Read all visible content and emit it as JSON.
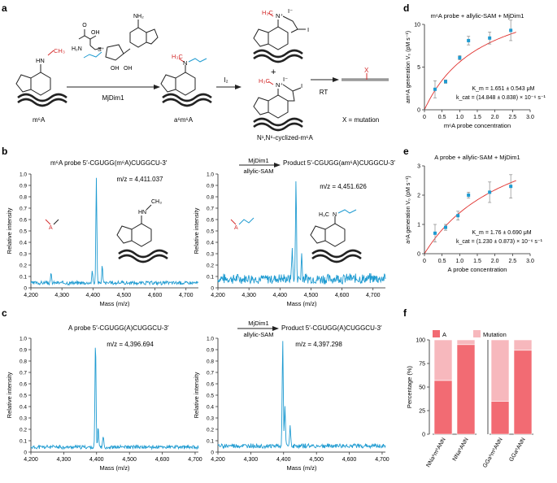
{
  "panels": {
    "a": "a",
    "b": "b",
    "c": "c",
    "d": "d",
    "e": "e",
    "f": "f"
  },
  "scheme": {
    "m6a_label": "m⁶A",
    "a6m6a_label": "a⁶m⁶A",
    "cyclized_label": "N¹,N⁶-cyclized-m⁶A",
    "enzyme": "MjDim1",
    "reagent": "I₂",
    "rt": "RT",
    "mutation_mark": "X",
    "mutation_legend": "X = mutation",
    "iodide": "I⁻",
    "iodine": "I",
    "plus": "+",
    "methyl": "CH₃",
    "methyl_h3c": "H₃C",
    "hn": "HN",
    "n_label": "N",
    "nplus_label": "N⁺",
    "sam_labels": {
      "oh_top": "O",
      "oh": "OH",
      "h2n": "H₂N",
      "s": "S⁺",
      "nh2": "NH₂"
    },
    "colors": {
      "red": "#d42c2c",
      "blue": "#1f9bd1"
    }
  },
  "panel_b": {
    "left_seq": "m⁶A probe  5′-CGUGG(m⁶A)CUGGCU-3′",
    "right_seq": "Product 5′-CGUGG(am⁶A)CUGGCU-3′",
    "enzyme": "MjDim1",
    "cofactor": "allylic-SAM",
    "left_mz": "m/z = 4,411.037",
    "right_mz": "m/z = 4,451.626",
    "ylabel": "Relative intensity",
    "xlabel": "Mass (m/z)",
    "yticks": [
      "0",
      "0.1",
      "0.2",
      "0.3",
      "0.4",
      "0.5",
      "0.6",
      "0.7",
      "0.8",
      "0.9",
      "1.0"
    ],
    "xticks": [
      "4,200",
      "4,300",
      "4,400",
      "4,500",
      "4,600",
      "4,700"
    ],
    "a_label": "A"
  },
  "panel_c": {
    "left_seq": "A probe  5′-CGUGG(A)CUGGCU-3′",
    "right_seq": "Product 5′-CGUGG(A)CUGGCU-3′",
    "enzyme": "MjDim1",
    "cofactor": "allylic-SAM",
    "left_mz": "m/z = 4,396.694",
    "right_mz": "m/z = 4,397.298",
    "ylabel": "Relative intensity",
    "xlabel": "Mass (m/z)",
    "yticks": [
      "0",
      "0.1",
      "0.2",
      "0.3",
      "0.4",
      "0.5",
      "0.6",
      "0.7",
      "0.8",
      "0.9",
      "1.0"
    ],
    "xticks": [
      "4,200",
      "4,300",
      "4,400",
      "4,500",
      "4,600",
      "4,700"
    ]
  },
  "chart_data": [
    {
      "id": "b-left",
      "type": "line",
      "title": "",
      "xlabel": "Mass (m/z)",
      "ylabel": "Relative intensity",
      "xlim": [
        4200,
        4740
      ],
      "ylim": [
        0,
        1.0
      ],
      "color": "#1f9bd1",
      "peaks": [
        {
          "x": 4411.037,
          "y": 0.94
        },
        {
          "x": 4398,
          "y": 0.1
        },
        {
          "x": 4430,
          "y": 0.15
        },
        {
          "x": 4265,
          "y": 0.08
        }
      ],
      "baseline": 0.04,
      "noise": 0.015,
      "seed": 3
    },
    {
      "id": "b-right",
      "type": "line",
      "title": "",
      "xlabel": "Mass (m/z)",
      "ylabel": "",
      "xlim": [
        4200,
        4740
      ],
      "ylim": [
        0,
        1.0
      ],
      "color": "#1f9bd1",
      "peaks": [
        {
          "x": 4451.626,
          "y": 0.86
        },
        {
          "x": 4440,
          "y": 0.18
        },
        {
          "x": 4470,
          "y": 0.22
        },
        {
          "x": 4438,
          "y": 0.12
        }
      ],
      "baseline": 0.07,
      "noise": 0.04,
      "seed": 7
    },
    {
      "id": "c-left",
      "type": "line",
      "title": "",
      "xlabel": "Mass (m/z)",
      "ylabel": "Relative intensity",
      "xlim": [
        4200,
        4710
      ],
      "ylim": [
        0,
        1.0
      ],
      "color": "#1f9bd1",
      "peaks": [
        {
          "x": 4396.694,
          "y": 0.94
        },
        {
          "x": 4405,
          "y": 0.18
        },
        {
          "x": 4420,
          "y": 0.1
        }
      ],
      "baseline": 0.04,
      "noise": 0.015,
      "seed": 11
    },
    {
      "id": "c-right",
      "type": "line",
      "title": "",
      "xlabel": "Mass (m/z)",
      "ylabel": "",
      "xlim": [
        4200,
        4710
      ],
      "ylim": [
        0,
        1.0
      ],
      "color": "#1f9bd1",
      "peaks": [
        {
          "x": 4397.298,
          "y": 0.93
        },
        {
          "x": 4404,
          "y": 0.35
        },
        {
          "x": 4420,
          "y": 0.18
        }
      ],
      "baseline": 0.05,
      "noise": 0.018,
      "seed": 19
    },
    {
      "id": "d",
      "type": "scatter",
      "title": "m⁶A probe + allylic-SAM + MjDim1",
      "xlabel": "m⁶A probe concentration",
      "ylabel": "am⁶A generation V₀ (pM s⁻¹)",
      "xlim": [
        0,
        3.0
      ],
      "ylim": [
        0,
        10
      ],
      "xticks": [
        "0",
        "0.5",
        "1.0",
        "1.5",
        "2.0",
        "2.5",
        "3.0"
      ],
      "yticks": [
        "0",
        "5",
        "10"
      ],
      "x": [
        0.3,
        0.6,
        1.0,
        1.25,
        1.85,
        2.45
      ],
      "y": [
        2.4,
        3.3,
        6.1,
        8.1,
        8.4,
        9.3
      ],
      "err": [
        1.0,
        0.2,
        0.25,
        0.5,
        0.7,
        1.2
      ],
      "fit": {
        "vmax": 14.848,
        "km": 1.651
      },
      "annotation_km": "K_m = 1.651 ± 0.543 μM",
      "annotation_kcat": "k_cat = (14.848 ± 0.838) × 10⁻⁶ s⁻¹",
      "point_color": "#1f9bd1",
      "fit_color": "#e0302d"
    },
    {
      "id": "e",
      "type": "scatter",
      "title": "A probe + allylic-SAM + MjDim1",
      "xlabel": "A probe concentration",
      "ylabel": "a⁶A generation V₀ (pM s⁻¹)",
      "xlim": [
        0,
        3.0
      ],
      "ylim": [
        0,
        3
      ],
      "xticks": [
        "0",
        "0.5",
        "1.0",
        "1.5",
        "2.0",
        "2.5",
        "3.0"
      ],
      "yticks": [
        "0",
        "1",
        "2",
        "3"
      ],
      "x": [
        0.3,
        0.6,
        0.95,
        1.25,
        1.85,
        2.45
      ],
      "y": [
        0.7,
        0.9,
        1.3,
        2.0,
        2.1,
        2.3
      ],
      "err": [
        0.3,
        0.1,
        0.15,
        0.1,
        0.35,
        0.4
      ],
      "fit": {
        "vmax": 4.9,
        "km": 2.5
      },
      "annotation_km": "K_m = 1.76 ± 0.690 μM",
      "annotation_kcat": "k_cat = (1.230 ± 0.873) × 10⁻⁶ s⁻¹",
      "point_color": "#1f9bd1",
      "fit_color": "#e0302d"
    },
    {
      "id": "f",
      "type": "bar",
      "stacked": true,
      "ylabel": "Percentage (%)",
      "ylim": [
        0,
        100
      ],
      "yticks": [
        "0",
        "25",
        "50",
        "75",
        "100"
      ],
      "groups": [
        {
          "categories": [
            "NNa⁶m⁶ANN",
            "NNa⁶ANN"
          ]
        },
        {
          "categories": [
            "GGa⁶m⁶ANN",
            "GGa⁶ANN"
          ]
        }
      ],
      "series": [
        {
          "name": "A",
          "color": "#f26b73",
          "values": [
            57,
            95,
            35,
            89
          ]
        },
        {
          "name": "Mutation",
          "color": "#f7b8bd",
          "values": [
            43,
            5,
            65,
            11
          ]
        }
      ]
    }
  ]
}
